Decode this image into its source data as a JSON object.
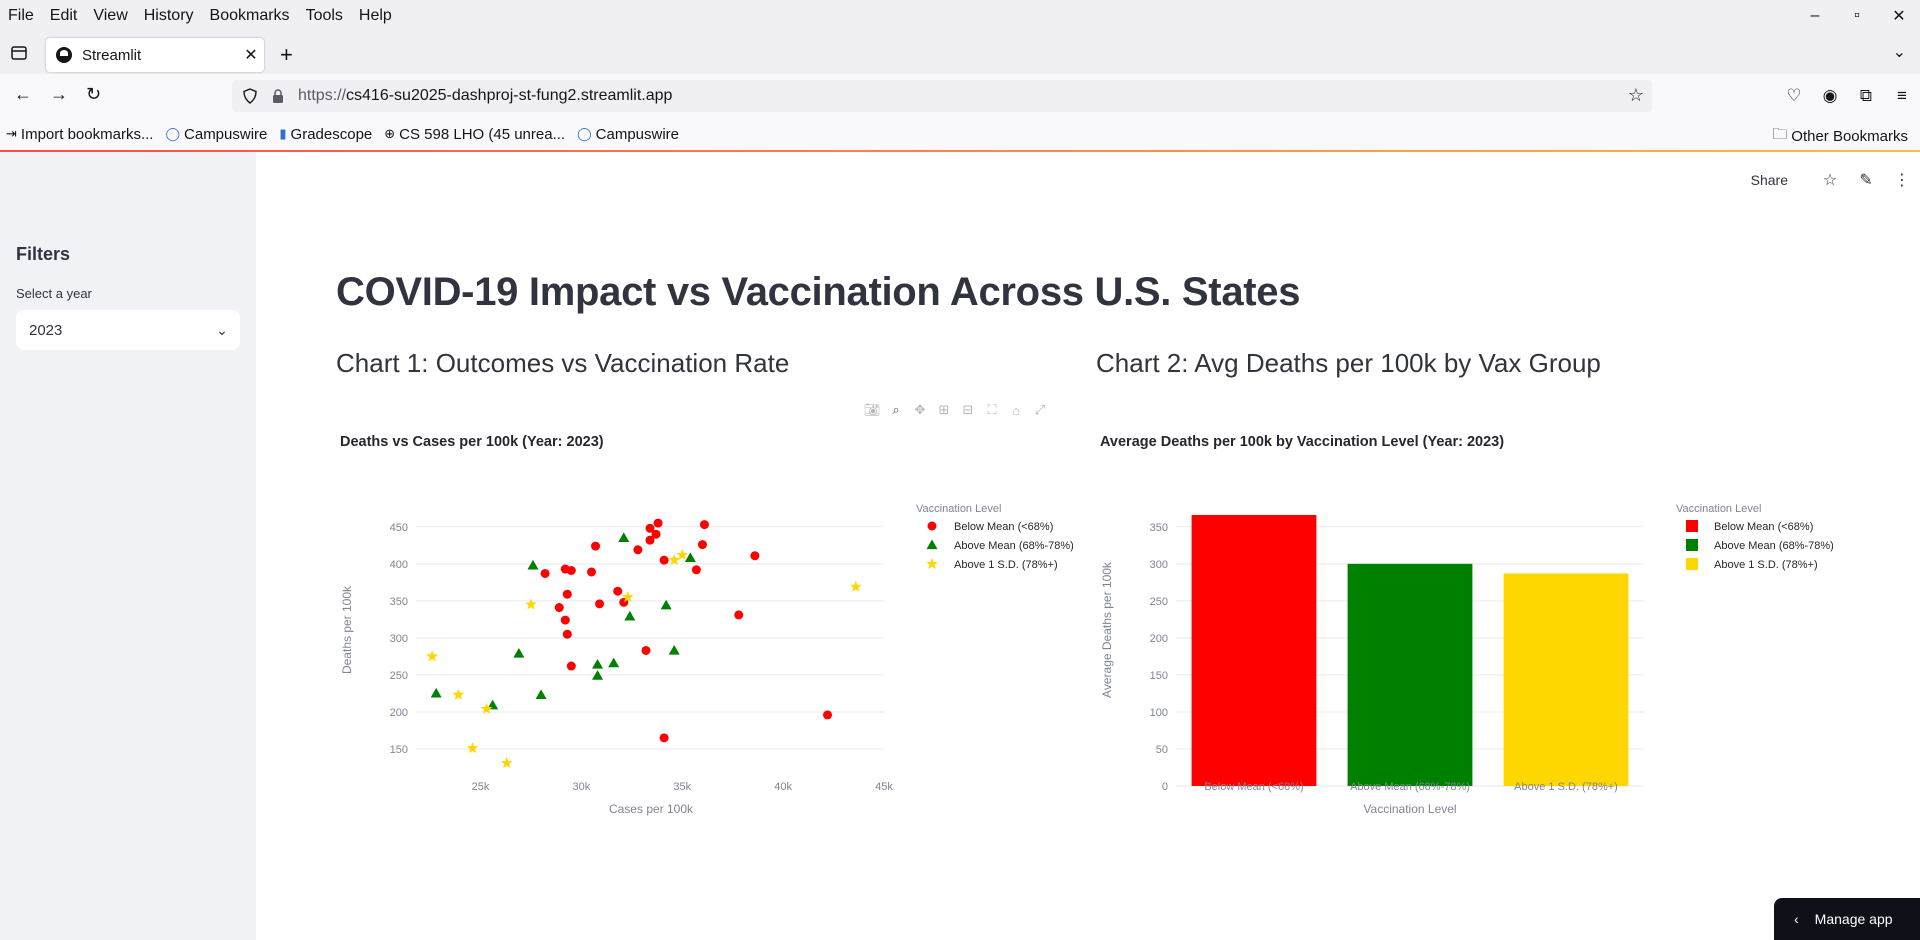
{
  "browser": {
    "menu": [
      "File",
      "Edit",
      "View",
      "History",
      "Bookmarks",
      "Tools",
      "Help"
    ],
    "window_controls": [
      "–",
      "▫",
      "✕"
    ],
    "tab": {
      "title": "Streamlit"
    },
    "url": {
      "scheme": "https://",
      "host": "cs416-su2025-dashproj-st-fung2.streamlit.app"
    },
    "bookmarks": [
      "Import bookmarks...",
      "Campuswire",
      "Gradescope",
      "CS 598 LHO (45 unrea...",
      "Campuswire"
    ],
    "other_bookmarks": "Other Bookmarks"
  },
  "sidebar": {
    "title": "Filters",
    "select_label": "Select a year",
    "select_value": "2023"
  },
  "toolbar": {
    "share": "Share"
  },
  "page": {
    "title": "COVID-19 Impact vs Vaccination Across U.S. States",
    "chart1_heading": "Chart 1: Outcomes vs Vaccination Rate",
    "chart2_heading": "Chart 2: Avg Deaths per 100k by Vax Group"
  },
  "manage_app": "Manage app",
  "colors": {
    "below": "#ff0000",
    "above": "#008000",
    "sd": "#ffd700",
    "accent": "#ff4b4b"
  },
  "chart_data": [
    {
      "type": "scatter",
      "title": "Deaths vs Cases per 100k (Year: 2023)",
      "xlabel": "Cases per 100k",
      "ylabel": "Deaths per 100k",
      "xlim": [
        21800,
        45000
      ],
      "ylim": [
        100,
        470
      ],
      "xticks": [
        25000,
        30000,
        35000,
        40000,
        45000
      ],
      "xtick_labels": [
        "25k",
        "30k",
        "35k",
        "40k",
        "45k"
      ],
      "yticks": [
        150,
        200,
        250,
        300,
        350,
        400,
        450
      ],
      "grid": true,
      "legend_title": "Vaccination Level",
      "legend_position": "right",
      "series": [
        {
          "name": "Below Mean (<68%)",
          "symbol": "circle",
          "color": "#ff0000",
          "points": [
            [
              33400,
              448
            ],
            [
              33800,
              455
            ],
            [
              36100,
              453
            ],
            [
              33400,
              432
            ],
            [
              33700,
              440
            ],
            [
              30700,
              424
            ],
            [
              36000,
              426
            ],
            [
              32800,
              419
            ],
            [
              38600,
              411
            ],
            [
              34100,
              405
            ],
            [
              29200,
              393
            ],
            [
              29500,
              391
            ],
            [
              28200,
              387
            ],
            [
              30500,
              389
            ],
            [
              35700,
              392
            ],
            [
              31800,
              363
            ],
            [
              29300,
              359
            ],
            [
              32100,
              348
            ],
            [
              30900,
              346
            ],
            [
              28900,
              341
            ],
            [
              29200,
              324
            ],
            [
              37800,
              331
            ],
            [
              29300,
              305
            ],
            [
              33200,
              283
            ],
            [
              29500,
              262
            ],
            [
              42200,
              196
            ],
            [
              34100,
              165
            ]
          ]
        },
        {
          "name": "Above Mean (68%-78%)",
          "symbol": "triangle",
          "color": "#008000",
          "points": [
            [
              32100,
              435
            ],
            [
              35400,
              408
            ],
            [
              27600,
              398
            ],
            [
              34200,
              344
            ],
            [
              32400,
              329
            ],
            [
              34600,
              283
            ],
            [
              26900,
              279
            ],
            [
              30800,
              264
            ],
            [
              31600,
              266
            ],
            [
              30800,
              249
            ],
            [
              22800,
              225
            ],
            [
              28000,
              223
            ],
            [
              25600,
              209
            ]
          ]
        },
        {
          "name": "Above 1 S.D. (78%+)",
          "symbol": "star",
          "color": "#ffd700",
          "points": [
            [
              35000,
              412
            ],
            [
              34600,
              405
            ],
            [
              32300,
              355
            ],
            [
              27500,
              345
            ],
            [
              43600,
              369
            ],
            [
              22600,
              275
            ],
            [
              23900,
              223
            ],
            [
              25300,
              204
            ],
            [
              24600,
              151
            ],
            [
              26300,
              131
            ]
          ]
        }
      ]
    },
    {
      "type": "bar",
      "title": "Average Deaths per 100k by Vaccination Level (Year: 2023)",
      "xlabel": "Vaccination Level",
      "ylabel": "Average Deaths per 100k",
      "ylim": [
        0,
        370
      ],
      "yticks": [
        0,
        50,
        100,
        150,
        200,
        250,
        300,
        350
      ],
      "grid": true,
      "legend_title": "Vaccination Level",
      "legend_position": "right",
      "categories": [
        "Below Mean (<68%)",
        "Above Mean (68%-78%)",
        "Above 1 S.D. (78%+)"
      ],
      "values": [
        366,
        300,
        287
      ],
      "colors": [
        "#ff0000",
        "#008000",
        "#ffd700"
      ]
    }
  ]
}
